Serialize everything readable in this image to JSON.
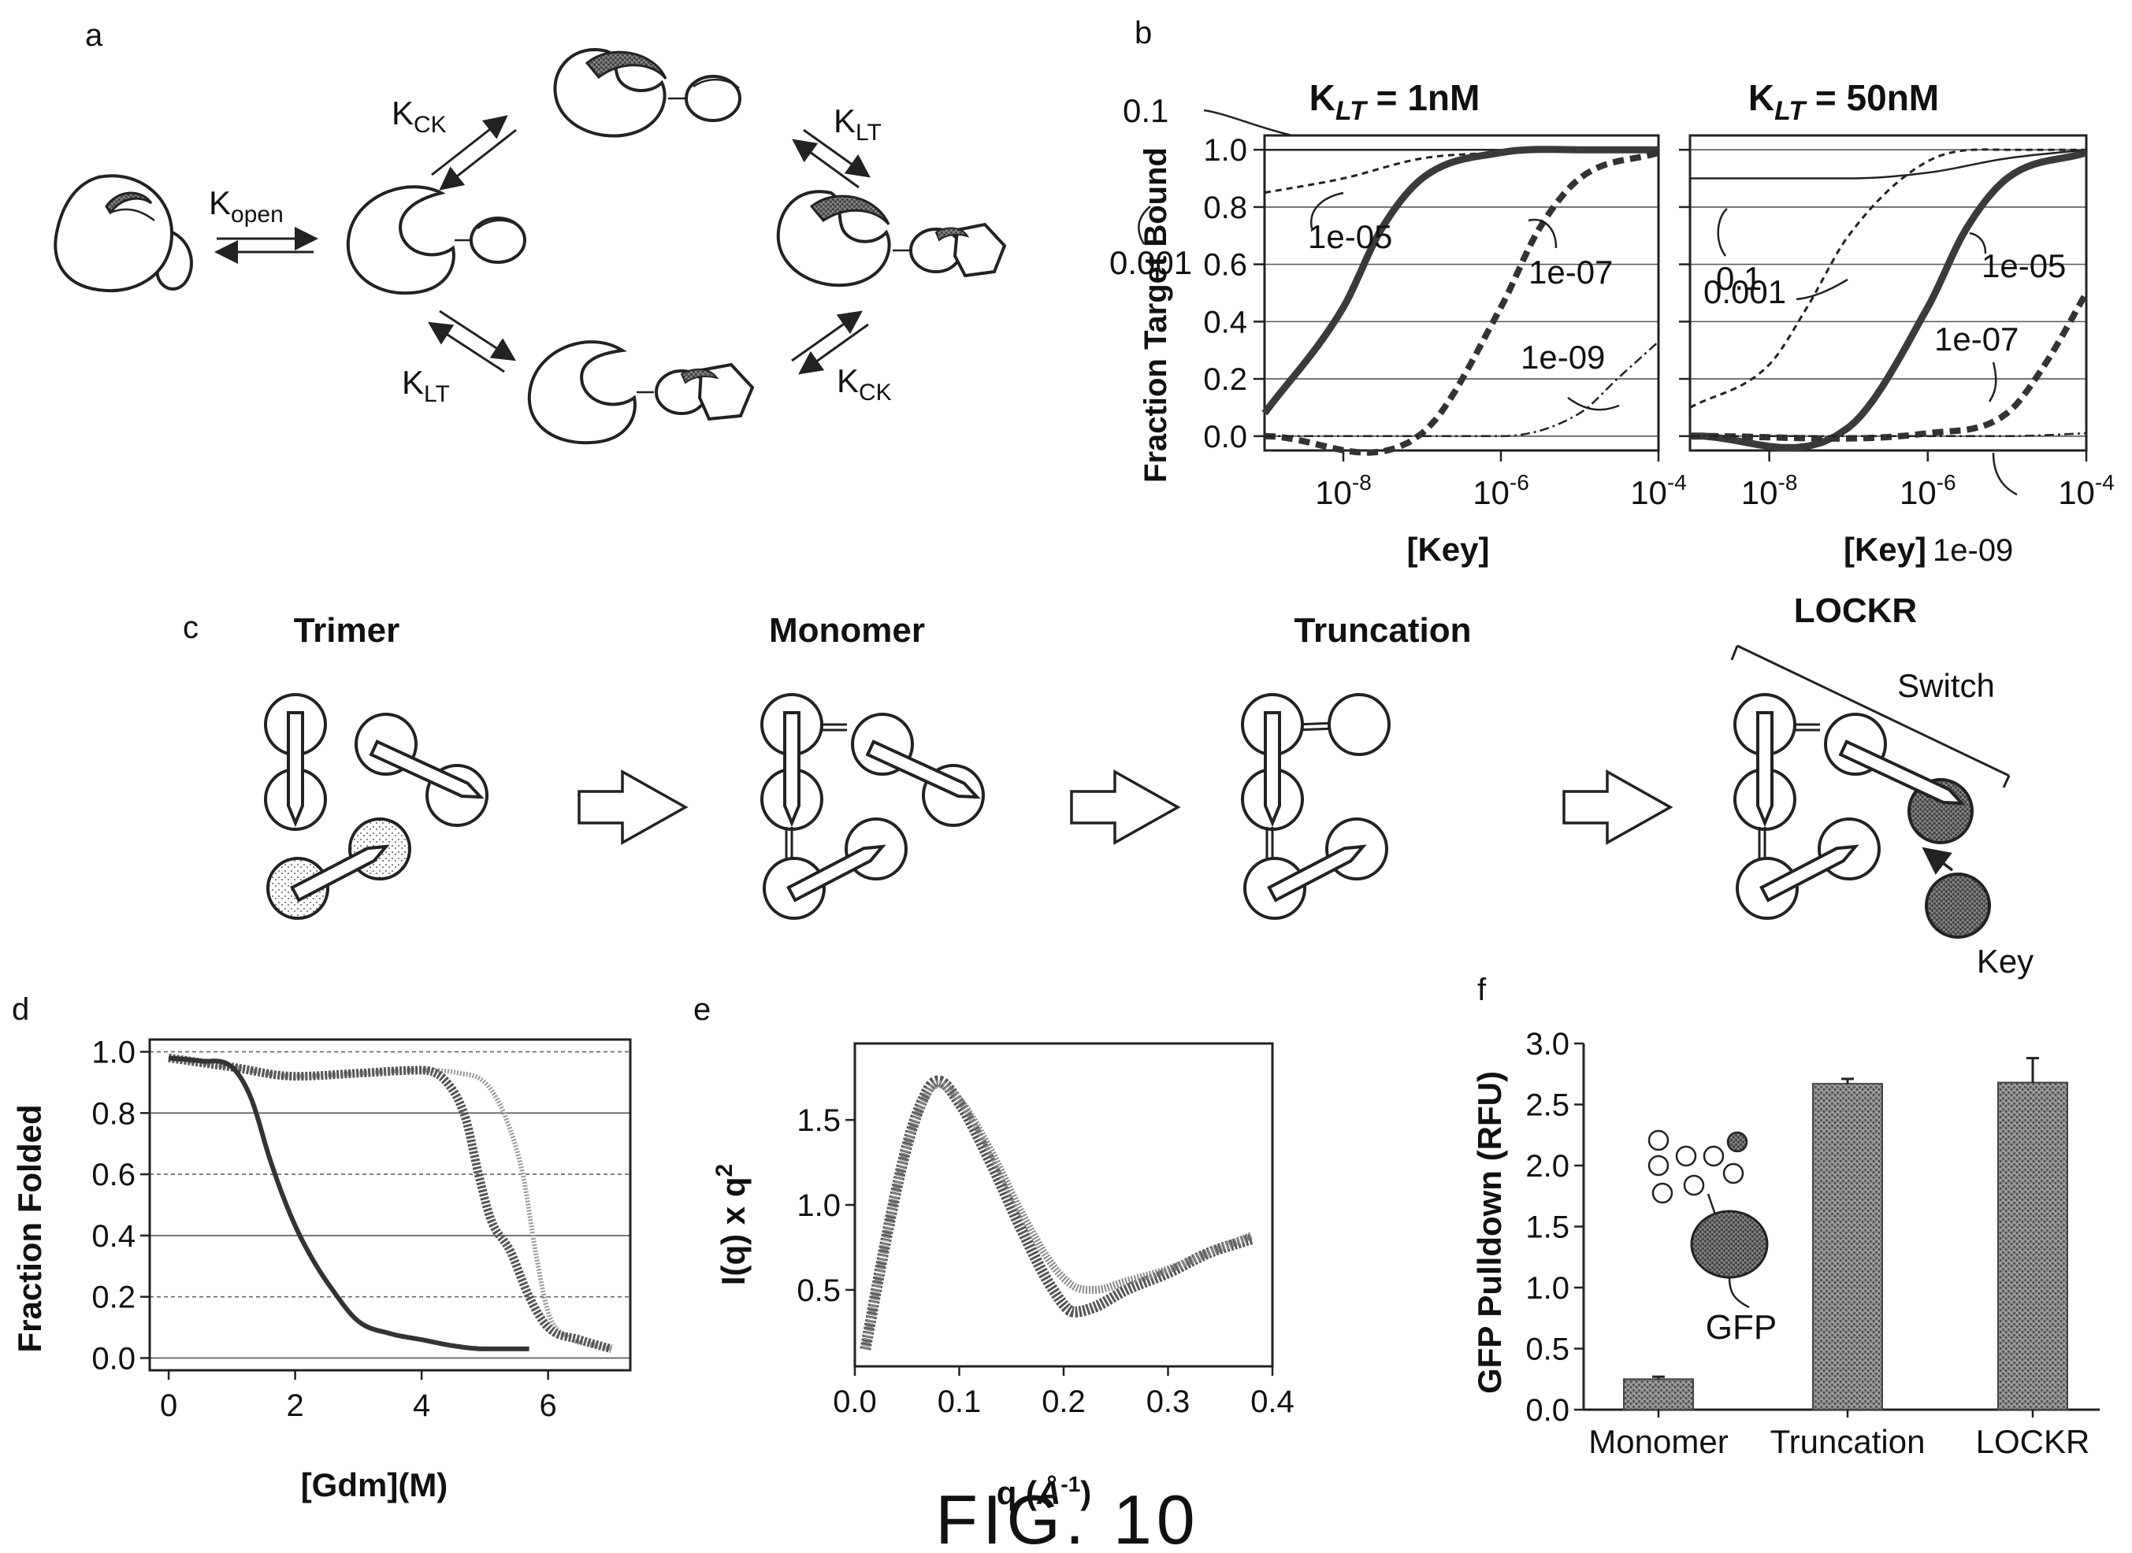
{
  "figure_caption": "FIG. 10",
  "panel_a": {
    "label": "a",
    "k_open": {
      "base": "K",
      "sub": "open"
    },
    "k_ck_top": {
      "base": "K",
      "sub": "CK"
    },
    "k_lt_top": {
      "base": "K",
      "sub": "LT"
    },
    "k_lt_bottom": {
      "base": "K",
      "sub": "LT"
    },
    "k_ck_bottom": {
      "base": "K",
      "sub": "CK"
    }
  },
  "panel_b": {
    "label": "b"
  },
  "panel_c": {
    "label": "c",
    "stages": [
      "Trimer",
      "Monomer",
      "Truncation",
      "LOCKR"
    ],
    "switch_label": "Switch",
    "key_label": "Key"
  },
  "panel_d": {
    "label": "d"
  },
  "panel_e": {
    "label": "e"
  },
  "panel_f": {
    "label": "f"
  },
  "chart_data": [
    {
      "panel": "b-left",
      "type": "line",
      "title": "K_LT = 1nM",
      "title_parts": {
        "base": "K",
        "sub": "LT",
        "rest": " = 1nM"
      },
      "xlabel": "[Key]",
      "ylabel": "Fraction Target Bound",
      "xscale": "log",
      "xlim": [
        1e-09,
        0.0001
      ],
      "ylim": [
        -0.05,
        1.05
      ],
      "yticks": [
        "0.0",
        "0.2",
        "0.4",
        "0.6",
        "0.8",
        "1.0"
      ],
      "xticks": [
        {
          "base": "10",
          "exp": "-8"
        },
        {
          "base": "10",
          "exp": "-6"
        },
        {
          "base": "10",
          "exp": "-4"
        }
      ],
      "series": [
        {
          "name": "0.1",
          "style": "thin-solid",
          "x": [
            1e-09,
            1e-08,
            1e-07,
            1e-06,
            1e-05,
            0.0001
          ],
          "y": [
            1.0,
            1.0,
            1.0,
            1.0,
            1.0,
            1.0
          ]
        },
        {
          "name": "0.001",
          "style": "dashed-thin",
          "x": [
            1e-09,
            1e-08,
            1e-07,
            1e-06,
            1e-05,
            0.0001
          ],
          "y": [
            0.85,
            0.9,
            0.97,
            0.99,
            1.0,
            1.0
          ]
        },
        {
          "name": "1e-05",
          "style": "thick-solid",
          "x": [
            1e-09,
            1e-08,
            3e-08,
            1e-07,
            1e-06,
            1e-05,
            0.0001
          ],
          "y": [
            0.08,
            0.45,
            0.72,
            0.9,
            0.99,
            1.0,
            1.0
          ]
        },
        {
          "name": "1e-07",
          "style": "thick-dashed",
          "x": [
            1e-09,
            1e-07,
            1e-06,
            3e-06,
            1e-05,
            0.0001
          ],
          "y": [
            0.0,
            0.01,
            0.45,
            0.72,
            0.9,
            0.99
          ]
        },
        {
          "name": "1e-09",
          "style": "dash-dot",
          "x": [
            1e-09,
            1e-06,
            1e-05,
            3e-05,
            0.0001
          ],
          "y": [
            0.0,
            0.0,
            0.08,
            0.2,
            0.33
          ]
        }
      ]
    },
    {
      "panel": "b-right",
      "type": "line",
      "title": "K_LT = 50nM",
      "title_parts": {
        "base": "K",
        "sub": "LT",
        "rest": " = 50nM"
      },
      "xlabel": "[Key]",
      "xlabel_extra": "1e-09",
      "xscale": "log",
      "xlim": [
        1e-09,
        0.0001
      ],
      "ylim": [
        -0.05,
        1.05
      ],
      "xticks": [
        {
          "base": "10",
          "exp": "-8"
        },
        {
          "base": "10",
          "exp": "-6"
        },
        {
          "base": "10",
          "exp": "-4"
        }
      ],
      "series": [
        {
          "name": "0.1",
          "style": "thin-solid",
          "x": [
            1e-09,
            1e-07,
            1e-06,
            1e-05,
            0.0001
          ],
          "y": [
            0.9,
            0.9,
            0.92,
            0.97,
            1.0
          ]
        },
        {
          "name": "0.001",
          "style": "dashed-thin",
          "x": [
            1e-09,
            1e-08,
            3e-08,
            1e-07,
            1e-06,
            1e-05,
            0.0001
          ],
          "y": [
            0.1,
            0.25,
            0.45,
            0.7,
            0.96,
            1.0,
            1.0
          ]
        },
        {
          "name": "1e-05",
          "style": "thick-solid",
          "x": [
            1e-09,
            1e-07,
            1e-06,
            3e-06,
            1e-05,
            0.0001
          ],
          "y": [
            0.0,
            0.03,
            0.45,
            0.72,
            0.9,
            0.99
          ]
        },
        {
          "name": "1e-07",
          "style": "thick-dashed",
          "x": [
            1e-09,
            1e-06,
            1e-05,
            3e-05,
            0.0001
          ],
          "y": [
            0.0,
            0.01,
            0.08,
            0.25,
            0.5
          ]
        },
        {
          "name": "1e-09",
          "style": "dash-dot",
          "x": [
            1e-09,
            1e-05,
            0.0001
          ],
          "y": [
            0.0,
            0.0,
            0.01
          ]
        }
      ]
    },
    {
      "panel": "d",
      "type": "line",
      "xlabel": "[Gdm](M)",
      "ylabel": "Fraction Folded",
      "xlim": [
        -0.3,
        7.3
      ],
      "ylim": [
        -0.04,
        1.04
      ],
      "xticks": [
        "0",
        "2",
        "4",
        "6"
      ],
      "yticks": [
        "0.0",
        "0.2",
        "0.4",
        "0.6",
        "0.8",
        "1.0"
      ],
      "series": [
        {
          "style": "monomer",
          "x": [
            0,
            0.5,
            1.0,
            1.3,
            1.6,
            1.9,
            2.2,
            2.6,
            3.0,
            3.5,
            4.0,
            4.5,
            5.0,
            5.7
          ],
          "y": [
            0.98,
            0.97,
            0.95,
            0.85,
            0.65,
            0.48,
            0.35,
            0.22,
            0.12,
            0.08,
            0.06,
            0.04,
            0.03,
            0.03
          ]
        },
        {
          "style": "truncation",
          "x": [
            0,
            1,
            2,
            3,
            4,
            4.4,
            4.7,
            4.9,
            5.1,
            5.4,
            5.7,
            6.0,
            6.5,
            7.0
          ],
          "y": [
            0.98,
            0.95,
            0.92,
            0.93,
            0.94,
            0.9,
            0.78,
            0.6,
            0.45,
            0.35,
            0.2,
            0.1,
            0.06,
            0.03
          ]
        },
        {
          "style": "lockr",
          "x": [
            0,
            1,
            2,
            3,
            4,
            4.6,
            5.0,
            5.3,
            5.6,
            5.8,
            6.0,
            6.3,
            6.8,
            7.0
          ],
          "y": [
            0.98,
            0.95,
            0.92,
            0.93,
            0.94,
            0.93,
            0.9,
            0.8,
            0.6,
            0.35,
            0.15,
            0.07,
            0.04,
            0.03
          ]
        }
      ]
    },
    {
      "panel": "e",
      "type": "line",
      "xlabel": "q (Å⁻¹)",
      "ylabel": "I(q) x q²",
      "xlim": [
        0,
        0.4
      ],
      "ylim": [
        0.05,
        1.95
      ],
      "xticks": [
        "0.0",
        "0.1",
        "0.2",
        "0.3",
        "0.4"
      ],
      "yticks": [
        "0.5",
        "1.0",
        "1.5"
      ],
      "series": [
        {
          "style": "a",
          "x": [
            0.01,
            0.03,
            0.05,
            0.07,
            0.08,
            0.1,
            0.13,
            0.16,
            0.19,
            0.21,
            0.23,
            0.26,
            0.3,
            0.34,
            0.38
          ],
          "y": [
            0.15,
            0.8,
            1.35,
            1.68,
            1.73,
            1.6,
            1.25,
            0.85,
            0.5,
            0.37,
            0.4,
            0.5,
            0.6,
            0.72,
            0.8
          ]
        },
        {
          "style": "b",
          "x": [
            0.01,
            0.03,
            0.05,
            0.07,
            0.08,
            0.1,
            0.13,
            0.16,
            0.19,
            0.21,
            0.23,
            0.26,
            0.3,
            0.34,
            0.38
          ],
          "y": [
            0.15,
            0.8,
            1.35,
            1.66,
            1.71,
            1.62,
            1.32,
            0.95,
            0.64,
            0.52,
            0.5,
            0.55,
            0.62,
            0.72,
            0.82
          ]
        }
      ]
    },
    {
      "panel": "f",
      "type": "bar",
      "categories": [
        "Monomer",
        "Truncation",
        "LOCKR"
      ],
      "values": [
        0.25,
        2.67,
        2.68
      ],
      "errors": [
        0.02,
        0.04,
        0.2
      ],
      "ylabel": "GFP Pulldown (RFU)",
      "ylim": [
        0,
        3.0
      ],
      "yticks": [
        "0.0",
        "0.5",
        "1.0",
        "1.5",
        "2.0",
        "2.5",
        "3.0"
      ],
      "inset_label": "GFP"
    }
  ]
}
